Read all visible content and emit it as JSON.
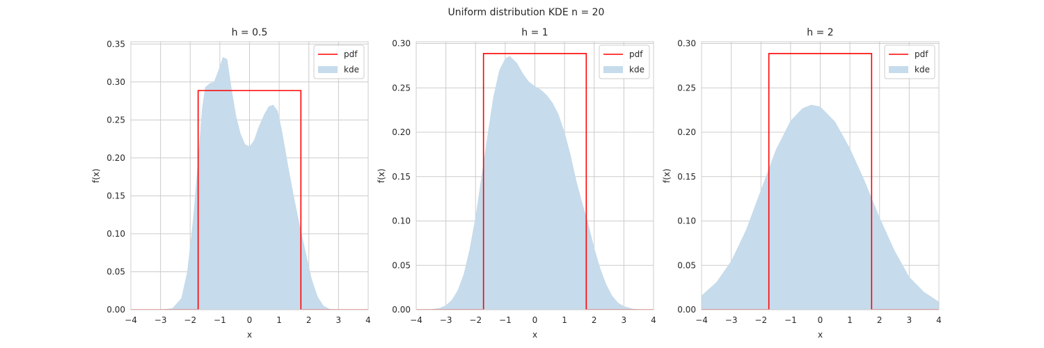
{
  "figure": {
    "title": "Uniform distribution KDE n = 20"
  },
  "colors": {
    "pdf": "#ff0000",
    "kde": "#c6dbeb",
    "grid": "#cccccc",
    "spine": "#cccccc"
  },
  "chart_data": [
    {
      "type": "area",
      "title": "h = 0.5",
      "xlabel": "x",
      "ylabel": "f(x)",
      "xlim": [
        -4,
        4
      ],
      "ylim": [
        0,
        0.353
      ],
      "xticks": [
        -4,
        -3,
        -2,
        -1,
        0,
        1,
        2,
        3,
        4
      ],
      "yticks": [
        0.0,
        0.05,
        0.1,
        0.15,
        0.2,
        0.25,
        0.3,
        0.35
      ],
      "ytick_labels": [
        "0.00",
        "0.05",
        "0.10",
        "0.15",
        "0.20",
        "0.25",
        "0.30",
        "0.35"
      ],
      "grid": true,
      "legend": {
        "position": "top-right",
        "entries": [
          "pdf",
          "kde"
        ]
      },
      "series": [
        {
          "name": "pdf",
          "kind": "line",
          "x": [
            -4,
            -1.732,
            -1.732,
            1.732,
            1.732,
            4
          ],
          "y": [
            0,
            0,
            0.2887,
            0.2887,
            0,
            0
          ]
        },
        {
          "name": "kde",
          "kind": "area",
          "x": [
            -4,
            -3,
            -2.6,
            -2.3,
            -2.1,
            -1.9,
            -1.75,
            -1.6,
            -1.5,
            -1.35,
            -1.2,
            -1.05,
            -0.9,
            -0.75,
            -0.6,
            -0.45,
            -0.3,
            -0.15,
            0,
            0.15,
            0.3,
            0.5,
            0.65,
            0.8,
            0.95,
            1.1,
            1.3,
            1.5,
            1.7,
            1.9,
            2.1,
            2.3,
            2.5,
            2.7,
            3,
            4
          ],
          "y": [
            0,
            0,
            0.002,
            0.015,
            0.05,
            0.12,
            0.19,
            0.265,
            0.293,
            0.298,
            0.3,
            0.315,
            0.333,
            0.33,
            0.29,
            0.255,
            0.232,
            0.218,
            0.215,
            0.223,
            0.24,
            0.258,
            0.268,
            0.27,
            0.262,
            0.235,
            0.19,
            0.148,
            0.11,
            0.075,
            0.04,
            0.017,
            0.005,
            0.001,
            0,
            0
          ]
        }
      ]
    },
    {
      "type": "area",
      "title": "h = 1",
      "xlabel": "x",
      "ylabel": "f(x)",
      "xlim": [
        -4,
        4
      ],
      "ylim": [
        0,
        0.302
      ],
      "xticks": [
        -4,
        -3,
        -2,
        -1,
        0,
        1,
        2,
        3,
        4
      ],
      "yticks": [
        0.0,
        0.05,
        0.1,
        0.15,
        0.2,
        0.25,
        0.3
      ],
      "ytick_labels": [
        "0.00",
        "0.05",
        "0.10",
        "0.15",
        "0.20",
        "0.25",
        "0.30"
      ],
      "grid": true,
      "legend": {
        "position": "top-right",
        "entries": [
          "pdf",
          "kde"
        ]
      },
      "series": [
        {
          "name": "pdf",
          "kind": "line",
          "x": [
            -4,
            -1.732,
            -1.732,
            1.732,
            1.732,
            4
          ],
          "y": [
            0,
            0,
            0.2887,
            0.2887,
            0,
            0
          ]
        },
        {
          "name": "kde",
          "kind": "area",
          "x": [
            -4,
            -3.5,
            -3.2,
            -3,
            -2.8,
            -2.6,
            -2.4,
            -2.2,
            -2,
            -1.8,
            -1.6,
            -1.4,
            -1.2,
            -1,
            -0.85,
            -0.6,
            -0.4,
            -0.2,
            0,
            0.2,
            0.4,
            0.6,
            0.8,
            1,
            1.2,
            1.4,
            1.6,
            1.8,
            2,
            2.2,
            2.4,
            2.6,
            2.8,
            3,
            3.3,
            3.6,
            4
          ],
          "y": [
            0,
            0.0005,
            0.002,
            0.005,
            0.011,
            0.022,
            0.04,
            0.068,
            0.105,
            0.15,
            0.196,
            0.24,
            0.27,
            0.283,
            0.286,
            0.278,
            0.266,
            0.257,
            0.252,
            0.248,
            0.242,
            0.233,
            0.22,
            0.2,
            0.175,
            0.145,
            0.12,
            0.097,
            0.07,
            0.047,
            0.029,
            0.016,
            0.008,
            0.004,
            0.001,
            0.0002,
            0
          ]
        }
      ]
    },
    {
      "type": "area",
      "title": "h = 2",
      "xlabel": "x",
      "ylabel": "f(x)",
      "xlim": [
        -4,
        4
      ],
      "ylim": [
        0,
        0.302
      ],
      "xticks": [
        -4,
        -3,
        -2,
        -1,
        0,
        1,
        2,
        3,
        4
      ],
      "yticks": [
        0.0,
        0.05,
        0.1,
        0.15,
        0.2,
        0.25,
        0.3
      ],
      "ytick_labels": [
        "0.00",
        "0.05",
        "0.10",
        "0.15",
        "0.20",
        "0.25",
        "0.30"
      ],
      "grid": true,
      "legend": {
        "position": "top-right",
        "entries": [
          "pdf",
          "kde"
        ]
      },
      "series": [
        {
          "name": "pdf",
          "kind": "line",
          "x": [
            -4,
            -1.732,
            -1.732,
            1.732,
            1.732,
            4
          ],
          "y": [
            0,
            0,
            0.2887,
            0.2887,
            0,
            0
          ]
        },
        {
          "name": "kde",
          "kind": "area",
          "x": [
            -4,
            -3.5,
            -3,
            -2.5,
            -2,
            -1.5,
            -1,
            -0.6,
            -0.3,
            0,
            0.5,
            1,
            1.5,
            2,
            2.5,
            3,
            3.5,
            4
          ],
          "y": [
            0.016,
            0.031,
            0.055,
            0.09,
            0.135,
            0.18,
            0.213,
            0.227,
            0.231,
            0.229,
            0.212,
            0.182,
            0.145,
            0.104,
            0.067,
            0.037,
            0.02,
            0.009
          ]
        }
      ]
    }
  ]
}
